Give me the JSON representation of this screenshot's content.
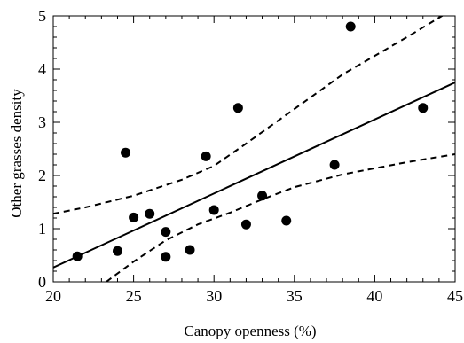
{
  "chart_data": {
    "type": "scatter",
    "title": "",
    "xlabel": "Canopy openness (%)",
    "ylabel": "Other  grasses density",
    "xlim": [
      20,
      45
    ],
    "ylim": [
      0,
      5
    ],
    "xticks": [
      20,
      25,
      30,
      35,
      40,
      45
    ],
    "yticks": [
      0,
      1,
      2,
      3,
      4,
      5
    ],
    "x_tick_labels": [
      "20",
      "25",
      "30",
      "35",
      "40",
      "45"
    ],
    "y_tick_labels": [
      "0",
      "1",
      "2",
      "3",
      "4",
      "5"
    ],
    "grid": false,
    "series": [
      {
        "kind": "points",
        "marker": "filled-circle",
        "color": "#000000",
        "points": [
          [
            21.5,
            0.48
          ],
          [
            24.0,
            0.58
          ],
          [
            24.5,
            2.43
          ],
          [
            25.0,
            1.21
          ],
          [
            26.0,
            1.28
          ],
          [
            27.0,
            0.94
          ],
          [
            27.0,
            0.47
          ],
          [
            28.5,
            0.6
          ],
          [
            29.5,
            2.36
          ],
          [
            30.0,
            1.35
          ],
          [
            31.5,
            3.27
          ],
          [
            32.0,
            1.08
          ],
          [
            33.0,
            1.62
          ],
          [
            34.5,
            1.15
          ],
          [
            37.5,
            2.2
          ],
          [
            38.5,
            4.8
          ],
          [
            43.0,
            3.27
          ]
        ]
      },
      {
        "kind": "fit-line",
        "style": "solid",
        "color": "#000000",
        "points": [
          [
            20,
            0.27
          ],
          [
            45,
            3.75
          ]
        ]
      },
      {
        "kind": "confidence-band-upper",
        "style": "dashed",
        "color": "#000000",
        "points": [
          [
            20,
            1.28
          ],
          [
            22,
            1.4
          ],
          [
            25,
            1.62
          ],
          [
            28,
            1.92
          ],
          [
            30,
            2.18
          ],
          [
            32,
            2.6
          ],
          [
            35,
            3.25
          ],
          [
            38,
            3.9
          ],
          [
            42,
            4.6
          ],
          [
            45,
            5.15
          ]
        ]
      },
      {
        "kind": "confidence-band-lower",
        "style": "dashed",
        "color": "#000000",
        "points": [
          [
            23.3,
            0.0
          ],
          [
            25,
            0.38
          ],
          [
            27,
            0.78
          ],
          [
            29,
            1.08
          ],
          [
            31,
            1.3
          ],
          [
            33,
            1.55
          ],
          [
            35,
            1.78
          ],
          [
            38,
            2.02
          ],
          [
            42,
            2.25
          ],
          [
            45,
            2.4
          ]
        ]
      }
    ]
  }
}
